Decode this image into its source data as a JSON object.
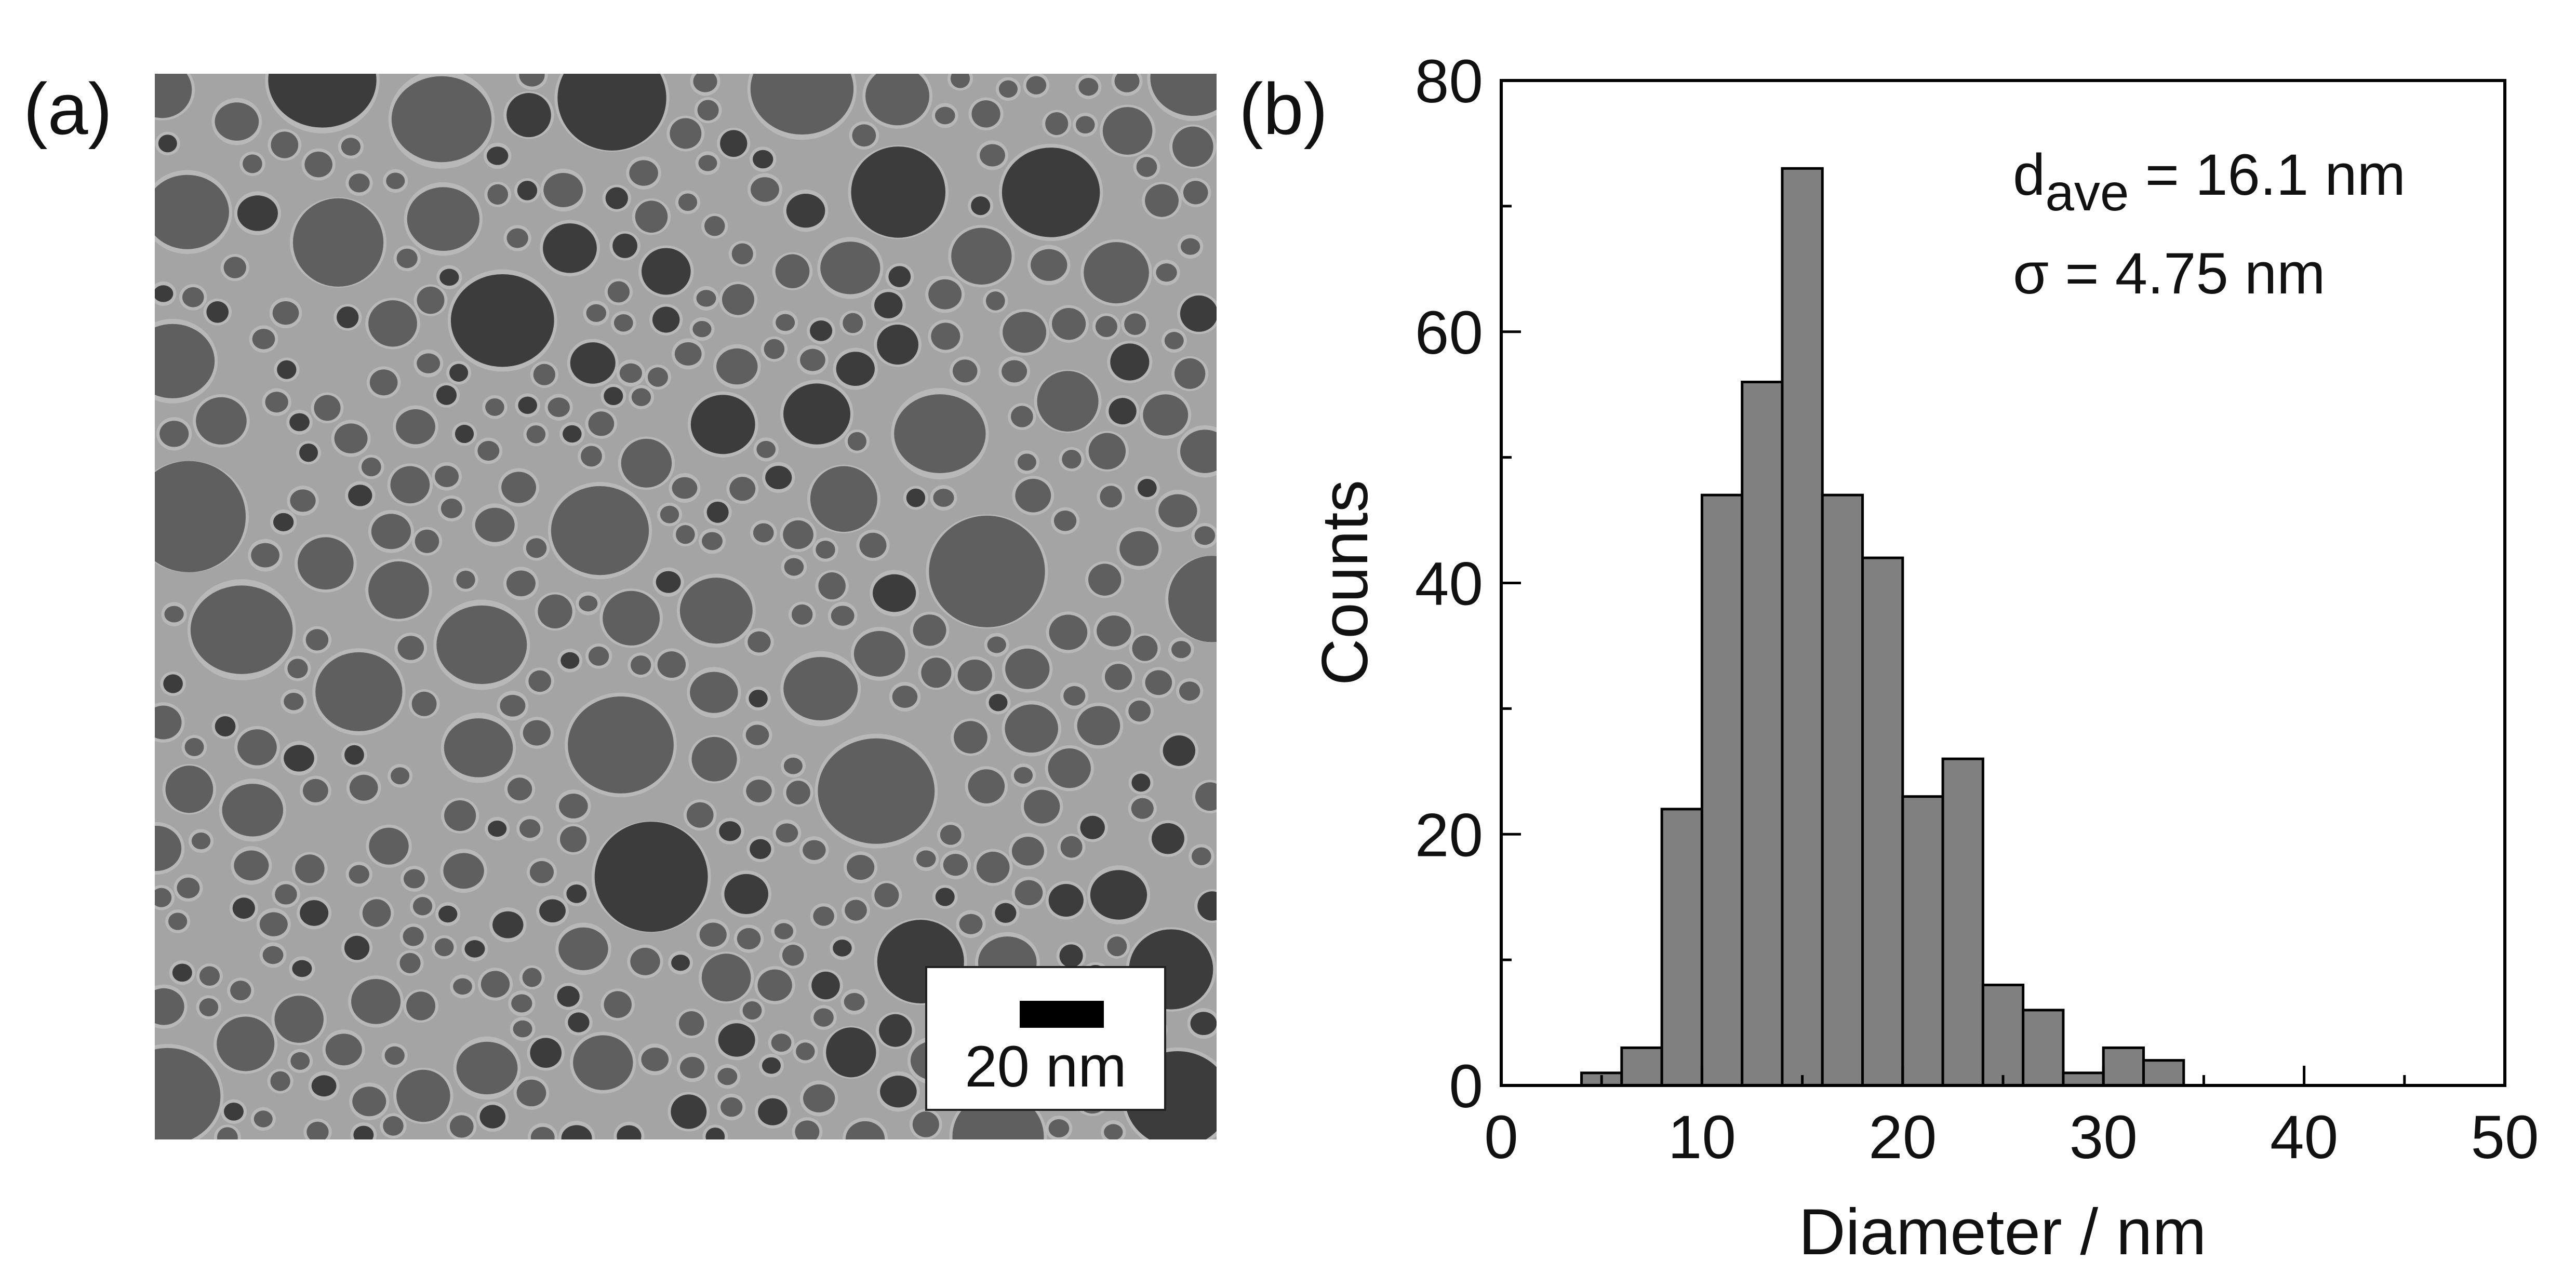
{
  "panel_a": {
    "label": "(a)",
    "scale_bar_text": "20 nm",
    "colors": {
      "background": "#a4a4a4",
      "particle": "#5f5f5f",
      "particle_dark": "#3c3c3c",
      "halo": "#c9c9c9"
    }
  },
  "panel_b": {
    "label": "(b)"
  },
  "chart_data": {
    "type": "bar",
    "title": "",
    "xlabel": "Diameter / nm",
    "ylabel": "Counts",
    "xlim": [
      0,
      50
    ],
    "ylim": [
      0,
      80
    ],
    "bin_width": 2,
    "bin_edges_start": [
      4,
      6,
      8,
      10,
      12,
      14,
      16,
      18,
      20,
      22,
      24,
      26,
      28,
      30,
      32
    ],
    "values": [
      1,
      3,
      22,
      47,
      56,
      73,
      47,
      42,
      23,
      26,
      8,
      6,
      1,
      3,
      2
    ],
    "x_ticks": [
      "0",
      "10",
      "20",
      "30",
      "40",
      "50"
    ],
    "y_ticks": [
      "0",
      "20",
      "40",
      "60",
      "80"
    ],
    "annotations": {
      "mean_prefix": "d",
      "mean_sub": "ave",
      "mean_value": " = 16.1 nm",
      "sigma": "σ = 4.75 nm"
    },
    "bar_color": "#808080",
    "grid": false
  }
}
